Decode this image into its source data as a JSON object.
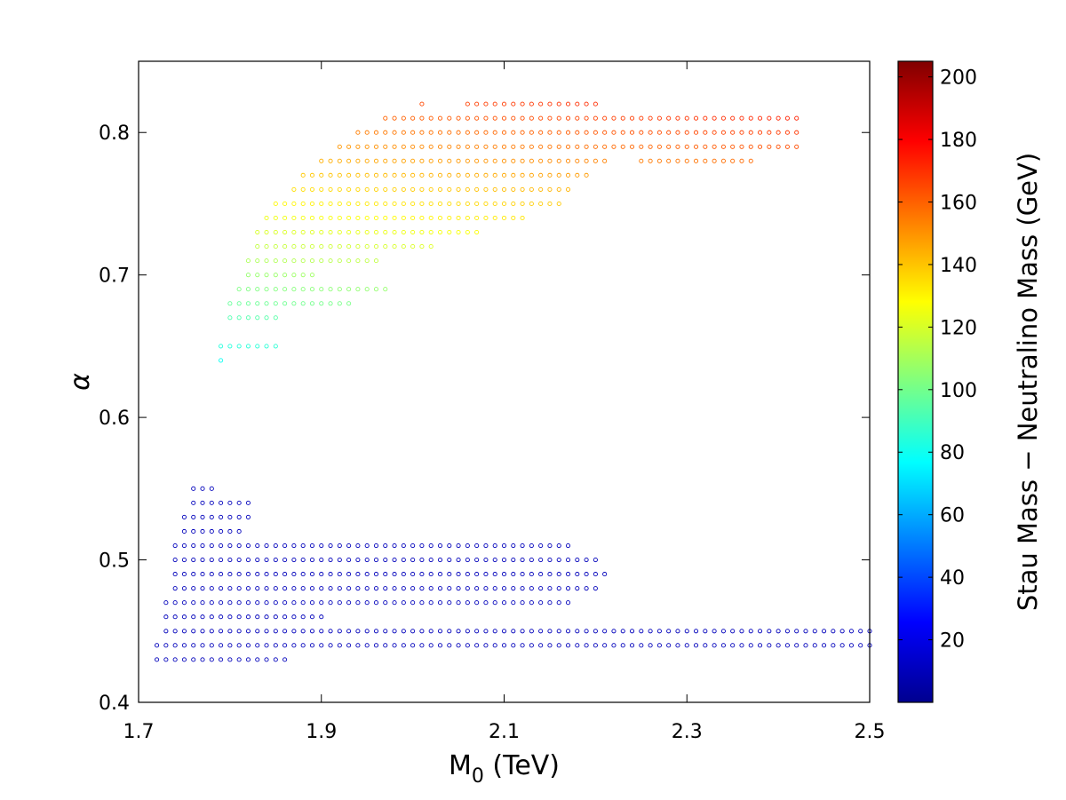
{
  "chart_data": {
    "type": "scatter",
    "title": "",
    "xlabel": "M",
    "xlabel_sub": "0",
    "xlabel_unit": " (TeV)",
    "ylabel": "α",
    "xlim": [
      1.7,
      2.5
    ],
    "ylim": [
      0.4,
      0.85
    ],
    "x_step": 0.01,
    "xticks": [
      1.7,
      1.9,
      2.1,
      2.3,
      2.5
    ],
    "xtick_labels": [
      "1.7",
      "1.9",
      "2.1",
      "2.3",
      "2.5"
    ],
    "yticks": [
      0.4,
      0.5,
      0.6,
      0.7,
      0.8
    ],
    "ytick_labels": [
      "0.4",
      "0.5",
      "0.6",
      "0.7",
      "0.8"
    ],
    "grid": false,
    "colorbar": {
      "label": "Stau Mass − Neutralino Mass (GeV)",
      "range": [
        0,
        205
      ],
      "ticks": [
        20,
        40,
        60,
        80,
        100,
        120,
        140,
        160,
        180,
        200
      ],
      "tick_labels": [
        "20",
        "40",
        "60",
        "80",
        "100",
        "120",
        "140",
        "160",
        "180",
        "200"
      ],
      "colormap": "jet"
    },
    "upper_region_color_model": {
      "base": -205,
      "slope_alpha": 440,
      "slope_m0": 30,
      "min": 75,
      "max": 195
    },
    "rows": [
      {
        "alpha": 0.82,
        "segments": [
          [
            2.01,
            2.01
          ],
          [
            2.06,
            2.2
          ]
        ]
      },
      {
        "alpha": 0.81,
        "segments": [
          [
            1.97,
            2.42
          ]
        ]
      },
      {
        "alpha": 0.8,
        "segments": [
          [
            1.94,
            2.42
          ]
        ]
      },
      {
        "alpha": 0.79,
        "segments": [
          [
            1.92,
            2.42
          ]
        ]
      },
      {
        "alpha": 0.78,
        "segments": [
          [
            1.9,
            2.21
          ],
          [
            2.25,
            2.37
          ]
        ]
      },
      {
        "alpha": 0.77,
        "segments": [
          [
            1.88,
            2.19
          ]
        ]
      },
      {
        "alpha": 0.76,
        "segments": [
          [
            1.87,
            2.17
          ]
        ]
      },
      {
        "alpha": 0.75,
        "segments": [
          [
            1.85,
            2.16
          ]
        ]
      },
      {
        "alpha": 0.74,
        "segments": [
          [
            1.84,
            2.12
          ]
        ]
      },
      {
        "alpha": 0.73,
        "segments": [
          [
            1.83,
            2.07
          ]
        ]
      },
      {
        "alpha": 0.72,
        "segments": [
          [
            1.83,
            2.02
          ]
        ]
      },
      {
        "alpha": 0.71,
        "segments": [
          [
            1.82,
            1.96
          ]
        ]
      },
      {
        "alpha": 0.7,
        "segments": [
          [
            1.82,
            1.89
          ]
        ]
      },
      {
        "alpha": 0.69,
        "segments": [
          [
            1.81,
            1.97
          ]
        ]
      },
      {
        "alpha": 0.68,
        "segments": [
          [
            1.8,
            1.93
          ]
        ]
      },
      {
        "alpha": 0.67,
        "segments": [
          [
            1.8,
            1.85
          ]
        ]
      },
      {
        "alpha": 0.65,
        "segments": [
          [
            1.79,
            1.85
          ]
        ]
      },
      {
        "alpha": 0.64,
        "segments": [
          [
            1.79,
            1.79
          ]
        ]
      },
      {
        "alpha": 0.55,
        "segments": [
          [
            1.76,
            1.78
          ]
        ],
        "value": 12
      },
      {
        "alpha": 0.54,
        "segments": [
          [
            1.76,
            1.82
          ]
        ],
        "value": 12
      },
      {
        "alpha": 0.53,
        "segments": [
          [
            1.75,
            1.82
          ]
        ],
        "value": 12
      },
      {
        "alpha": 0.52,
        "segments": [
          [
            1.75,
            1.81
          ]
        ],
        "value": 12
      },
      {
        "alpha": 0.51,
        "segments": [
          [
            1.74,
            2.17
          ]
        ],
        "value": 12
      },
      {
        "alpha": 0.5,
        "segments": [
          [
            1.74,
            2.2
          ]
        ],
        "value": 12
      },
      {
        "alpha": 0.49,
        "segments": [
          [
            1.74,
            2.21
          ]
        ],
        "value": 12
      },
      {
        "alpha": 0.48,
        "segments": [
          [
            1.74,
            2.2
          ]
        ],
        "value": 12
      },
      {
        "alpha": 0.47,
        "segments": [
          [
            1.73,
            2.17
          ]
        ],
        "value": 12
      },
      {
        "alpha": 0.46,
        "segments": [
          [
            1.73,
            1.9
          ]
        ],
        "value": 12
      },
      {
        "alpha": 0.45,
        "segments": [
          [
            1.73,
            2.5
          ]
        ],
        "value": 12
      },
      {
        "alpha": 0.44,
        "segments": [
          [
            1.72,
            2.5
          ]
        ],
        "value": 12
      },
      {
        "alpha": 0.43,
        "segments": [
          [
            1.72,
            1.86
          ]
        ],
        "value": 12
      }
    ]
  }
}
